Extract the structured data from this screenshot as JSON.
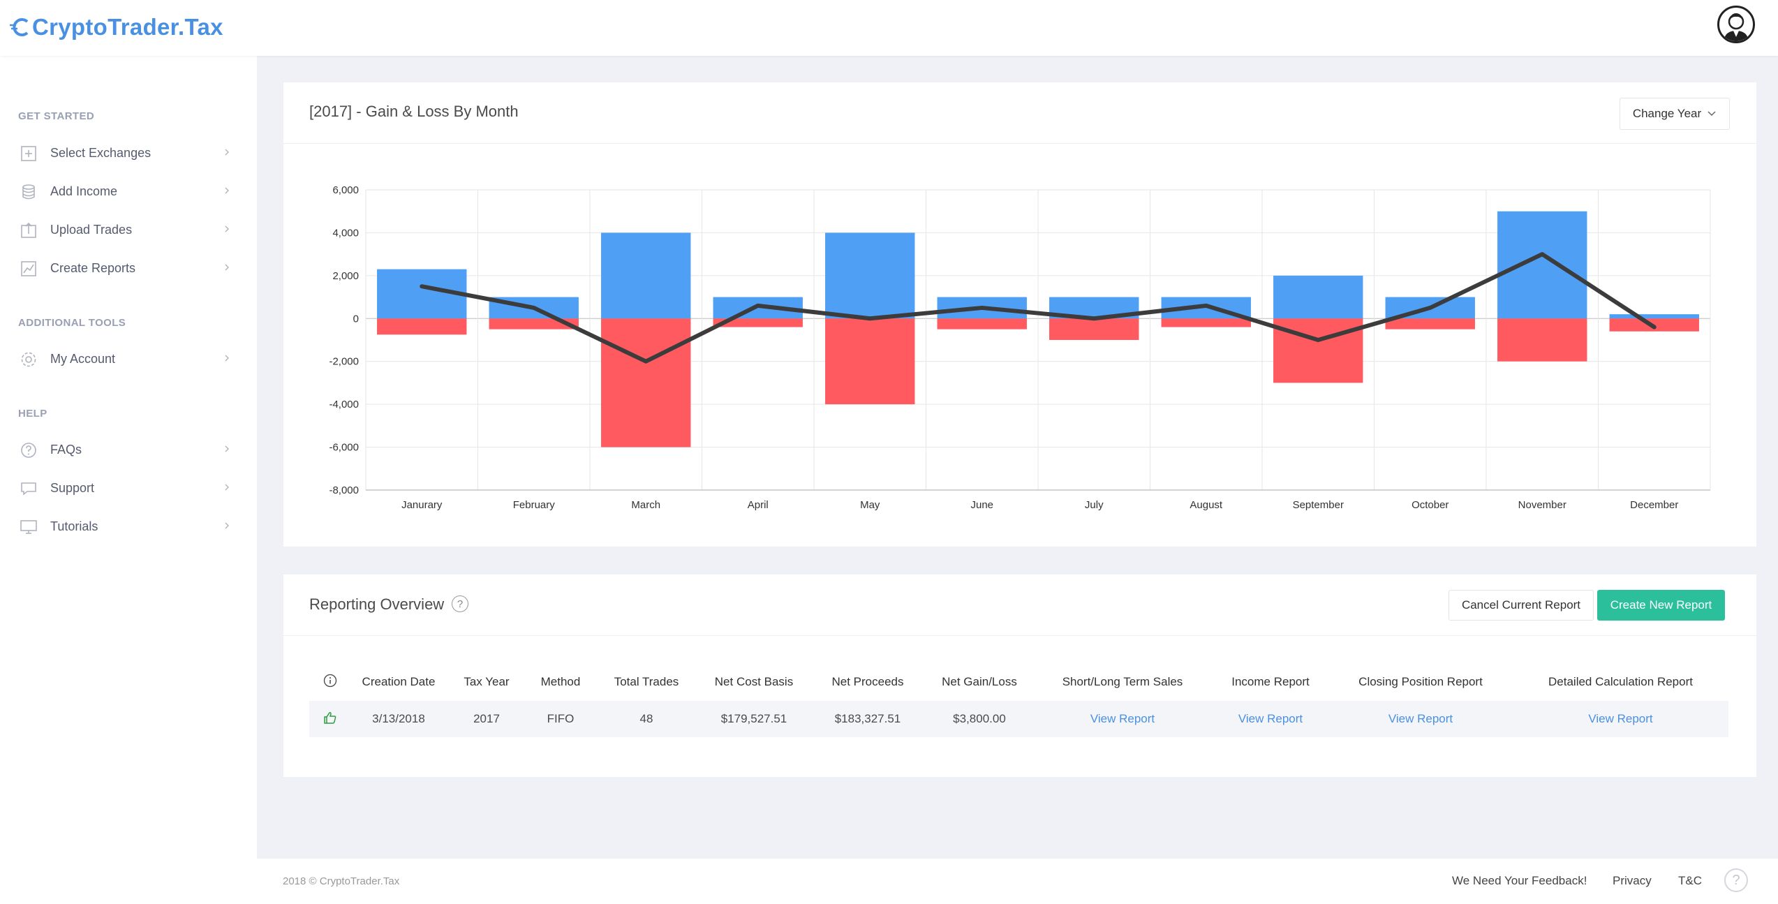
{
  "app": {
    "logo_text": "CryptoTrader.Tax",
    "avatar_icon": "user-avatar-icon"
  },
  "sidebar": {
    "sections": [
      {
        "title": "GET STARTED",
        "items": [
          {
            "label": "Select Exchanges",
            "icon": "add-box-icon"
          },
          {
            "label": "Add Income",
            "icon": "coins-icon"
          },
          {
            "label": "Upload Trades",
            "icon": "upload-icon"
          },
          {
            "label": "Create Reports",
            "icon": "chart-icon"
          }
        ]
      },
      {
        "title": "ADDITIONAL TOOLS",
        "items": [
          {
            "label": "My Account",
            "icon": "gear-icon"
          }
        ]
      },
      {
        "title": "HELP",
        "items": [
          {
            "label": "FAQs",
            "icon": "question-icon"
          },
          {
            "label": "Support",
            "icon": "chat-icon"
          },
          {
            "label": "Tutorials",
            "icon": "monitor-icon"
          }
        ]
      }
    ]
  },
  "chart_card": {
    "title": "[2017] - Gain & Loss By Month",
    "change_year_label": "Change Year"
  },
  "chart_data": {
    "type": "bar",
    "title": "[2017] - Gain & Loss By Month",
    "categories": [
      "Janurary",
      "February",
      "March",
      "April",
      "May",
      "June",
      "July",
      "August",
      "September",
      "October",
      "November",
      "December"
    ],
    "series": [
      {
        "kind": "bar",
        "color": "#4f9ff5",
        "values": [
          2300,
          1000,
          4000,
          1000,
          4000,
          1000,
          1000,
          1000,
          2000,
          1000,
          5000,
          200
        ]
      },
      {
        "kind": "bar",
        "color": "#ff5a5f",
        "values": [
          -750,
          -500,
          -6000,
          -400,
          -4000,
          -500,
          -1000,
          -400,
          -3000,
          -500,
          -2000,
          -600
        ]
      },
      {
        "kind": "line",
        "color": "#3c3c3c",
        "values": [
          1500,
          500,
          -2000,
          600,
          0,
          500,
          0,
          600,
          -1000,
          500,
          3000,
          -400
        ]
      }
    ],
    "y_ticks": [
      "6,000",
      "4,000",
      "2,000",
      "0",
      "-2,000",
      "-4,000",
      "-6,000",
      "-8,000"
    ],
    "ylim": [
      -8000,
      6000
    ],
    "grid": true
  },
  "report_card": {
    "title": "Reporting Overview",
    "cancel_label": "Cancel Current Report",
    "create_label": "Create New Report",
    "columns": [
      "Creation Date",
      "Tax Year",
      "Method",
      "Total Trades",
      "Net Cost Basis",
      "Net Proceeds",
      "Net Gain/Loss",
      "Short/Long Term Sales",
      "Income Report",
      "Closing Position Report",
      "Detailed Calculation Report"
    ],
    "rows": [
      {
        "status_icon": "thumbs-up-icon",
        "creation_date": "3/13/2018",
        "tax_year": "2017",
        "method": "FIFO",
        "total_trades": "48",
        "net_cost_basis": "$179,527.51",
        "net_proceeds": "$183,327.51",
        "net_gain_loss": "$3,800.00",
        "short_long": "View Report",
        "income": "View Report",
        "closing": "View Report",
        "detailed": "View Report"
      }
    ]
  },
  "footer": {
    "copyright": "2018 © CryptoTrader.Tax",
    "feedback": "We Need Your Feedback!",
    "privacy": "Privacy",
    "tc": "T&C",
    "help": "?"
  }
}
